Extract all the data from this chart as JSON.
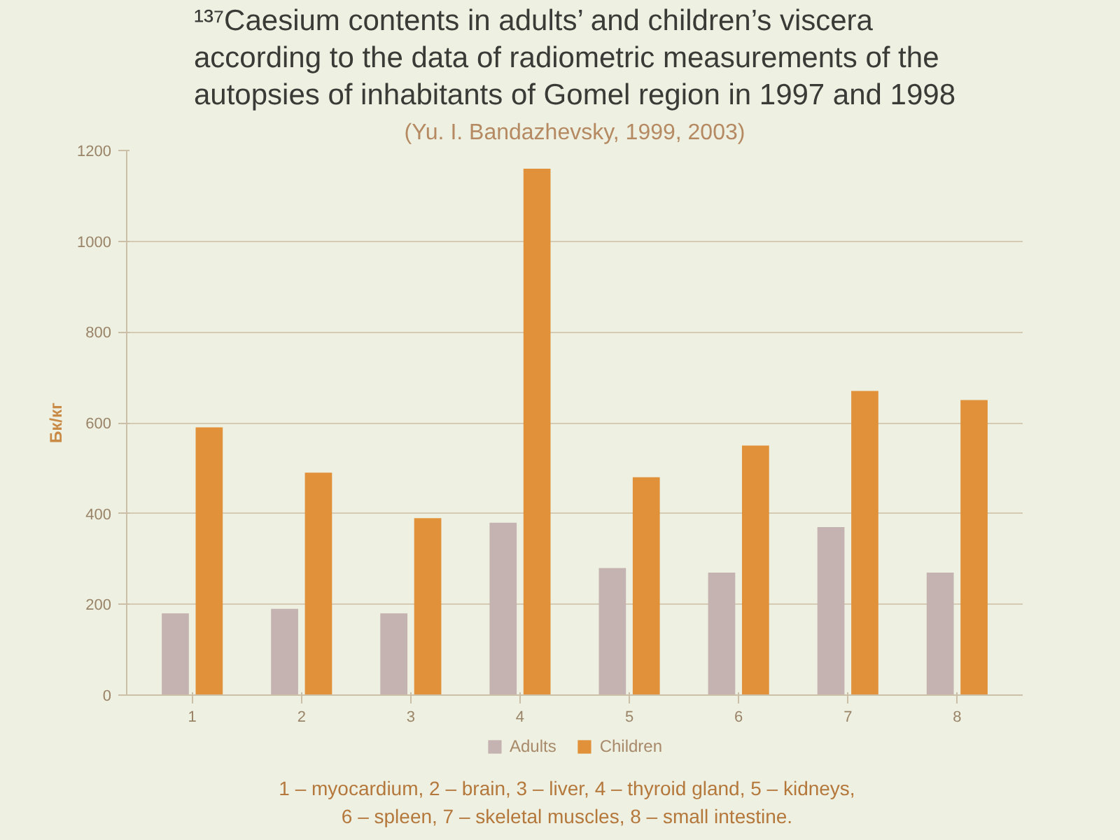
{
  "chart_data": {
    "type": "bar",
    "title": "¹³⁷Caesium contents in adults’ and children’s viscera according to the data of radiometric measurements of the autopsies of inhabitants of Gomel region in 1997 and 1998",
    "subtitle": "(Yu. I. Bandazhevsky, 1999, 2003)",
    "ylabel": "Бк/кг",
    "categories": [
      "1",
      "2",
      "3",
      "4",
      "5",
      "6",
      "7",
      "8"
    ],
    "series": [
      {
        "name": "Adults",
        "color": "#c4b3b0",
        "values": [
          180,
          190,
          180,
          380,
          280,
          270,
          370,
          270
        ]
      },
      {
        "name": "Children",
        "color": "#e0913a",
        "values": [
          590,
          490,
          390,
          1160,
          480,
          550,
          670,
          650
        ]
      }
    ],
    "ylim": [
      0,
      1200
    ],
    "yticks": [
      0,
      200,
      400,
      600,
      800,
      1000,
      1200
    ],
    "grid": "y",
    "legend": "bottom",
    "annotations": [
      "1 – myocardium, 2 – brain, 3 – liver, 4 – thyroid gland, 5 – kidneys, 6 – spleen, 7 – skeletal muscles, 8 – small intestine."
    ]
  }
}
